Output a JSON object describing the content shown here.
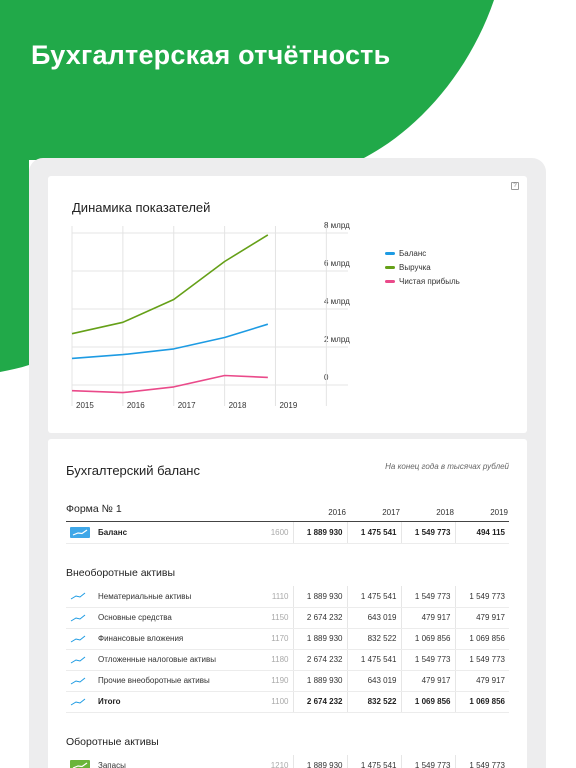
{
  "page_title": "Бухгалтерская отчётность",
  "colors": {
    "brand_green": "#21a949",
    "blue": "#1d9be3",
    "green": "#65a018",
    "pink": "#ea4a8a"
  },
  "chart": {
    "help_label": "?",
    "title": "Динамика показателей"
  },
  "chart_data": {
    "type": "line",
    "title": "Динамика показателей",
    "x": [
      "2015",
      "2016",
      "2017",
      "2018",
      "2019"
    ],
    "y_ticks": [
      "0",
      "2 млрд",
      "4 млрд",
      "6 млрд",
      "8 млрд"
    ],
    "ylim": [
      0,
      8
    ],
    "grid": true,
    "legend_position": "right",
    "series": [
      {
        "name": "Баланс",
        "color": "#1d9be3",
        "values": [
          1.4,
          1.6,
          1.9,
          2.5,
          3.2
        ]
      },
      {
        "name": "Выручка",
        "color": "#65a018",
        "values": [
          2.7,
          3.3,
          4.5,
          6.5,
          7.9
        ]
      },
      {
        "name": "Чистая прибыль",
        "color": "#ea4a8a",
        "values": [
          -0.3,
          -0.4,
          -0.1,
          0.5,
          0.4
        ]
      }
    ]
  },
  "balance": {
    "title": "Бухгалтерский баланс",
    "note": "На конец года в тысячах рублей",
    "form_title": "Форма № 1",
    "years": [
      "2016",
      "2017",
      "2018",
      "2019"
    ],
    "summary_row": {
      "name": "Баланс",
      "code": "1600",
      "values": [
        "1 889 930",
        "1 475 541",
        "1 549 773",
        "494 115"
      ]
    },
    "noncurrent": {
      "title": "Внеоборотные активы",
      "rows": [
        {
          "name": "Нематериальные активы",
          "code": "1110",
          "values": [
            "1 889 930",
            "1 475 541",
            "1 549 773",
            "1 549 773"
          ]
        },
        {
          "name": "Основные средства",
          "code": "1150",
          "values": [
            "2 674 232",
            "643 019",
            "479 917",
            "479 917"
          ]
        },
        {
          "name": "Финансовые вложения",
          "code": "1170",
          "values": [
            "1 889 930",
            "832 522",
            "1 069 856",
            "1 069 856"
          ]
        },
        {
          "name": "Отложенные налоговые активы",
          "code": "1180",
          "values": [
            "2 674 232",
            "1 475 541",
            "1 549 773",
            "1 549 773"
          ]
        },
        {
          "name": "Прочие внеоборотные активы",
          "code": "1190",
          "values": [
            "1 889 930",
            "643 019",
            "479 917",
            "479 917"
          ]
        },
        {
          "name": "Итого",
          "code": "1100",
          "values": [
            "2 674 232",
            "832 522",
            "1 069 856",
            "1 069 856"
          ]
        }
      ]
    },
    "current": {
      "title": "Оборотные активы",
      "rows": [
        {
          "name": "Запасы",
          "code": "1210",
          "values": [
            "1 889 930",
            "1 475 541",
            "1 549 773",
            "1 549 773"
          ]
        }
      ]
    }
  }
}
